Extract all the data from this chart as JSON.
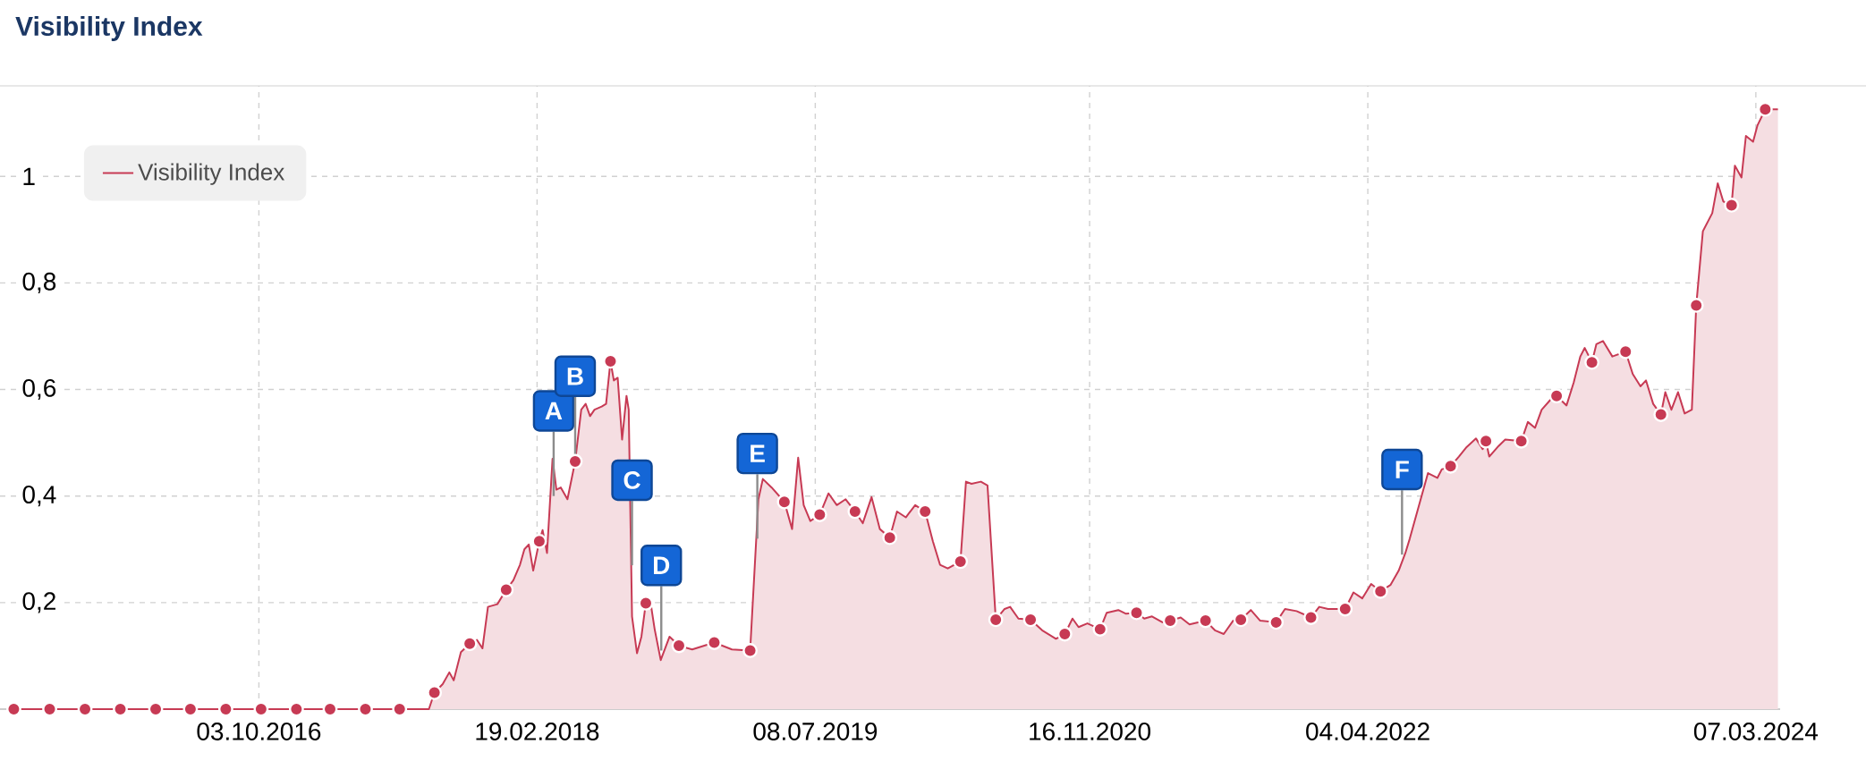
{
  "chart_data": {
    "type": "area",
    "title": "Visibility Index",
    "xlim": [
      "2015-06-22",
      "2024-04-20"
    ],
    "ylim": [
      0,
      1.17
    ],
    "xticks": [
      {
        "value": "2016-10-03",
        "label": "03.10.2016"
      },
      {
        "value": "2018-02-19",
        "label": "19.02.2018"
      },
      {
        "value": "2019-07-08",
        "label": "08.07.2019"
      },
      {
        "value": "2020-11-16",
        "label": "16.11.2020"
      },
      {
        "value": "2022-04-04",
        "label": "04.04.2022"
      },
      {
        "value": "2024-03-07",
        "label": "07.03.2024"
      }
    ],
    "yticks": [
      {
        "value": 0.2,
        "label": "0,2"
      },
      {
        "value": 0.4,
        "label": "0,4"
      },
      {
        "value": 0.6,
        "label": "0,6"
      },
      {
        "value": 0.8,
        "label": "0,8"
      },
      1
    ],
    "grid": true,
    "legend": "top left",
    "annotations": [
      {
        "text": "A",
        "x": "2018-03-21",
        "y": 0.4
      },
      {
        "text": "B",
        "x": "2018-04-29",
        "y": 0.465
      },
      {
        "text": "C",
        "x": "2018-08-10",
        "y": 0.27
      },
      {
        "text": "D",
        "x": "2018-10-02",
        "y": 0.11
      },
      {
        "text": "E",
        "x": "2019-03-25",
        "y": 0.32
      },
      {
        "text": "F",
        "x": "2022-06-05",
        "y": 0.29
      }
    ],
    "series": [
      {
        "name": "Visibility Index",
        "color": "#c73a54",
        "x": [
          "2015-07-17",
          "2017-08-07",
          "2017-08-17",
          "2017-09-01",
          "2017-09-13",
          "2017-09-21",
          "2017-10-04",
          "2017-10-20",
          "2017-11-02",
          "2017-11-12",
          "2017-11-22",
          "2017-12-09",
          "2017-12-25",
          "2018-01-07",
          "2018-01-19",
          "2018-01-27",
          "2018-02-04",
          "2018-02-12",
          "2018-02-23",
          "2018-03-01",
          "2018-03-09",
          "2018-03-19",
          "2018-03-26",
          "2018-04-03",
          "2018-04-15",
          "2018-04-29",
          "2018-05-10",
          "2018-05-18",
          "2018-05-26",
          "2018-06-03",
          "2018-06-16",
          "2018-06-24",
          "2018-07-02",
          "2018-07-08",
          "2018-07-15",
          "2018-07-23",
          "2018-07-31",
          "2018-08-04",
          "2018-08-10",
          "2018-08-19",
          "2018-08-27",
          "2018-09-04",
          "2018-09-12",
          "2018-09-20",
          "2018-10-01",
          "2018-10-17",
          "2018-11-03",
          "2018-11-27",
          "2019-01-06",
          "2019-02-07",
          "2019-03-12",
          "2019-03-27",
          "2019-04-04",
          "2019-04-20",
          "2019-05-13",
          "2019-05-27",
          "2019-06-07",
          "2019-06-17",
          "2019-06-29",
          "2019-07-16",
          "2019-08-01",
          "2019-08-16",
          "2019-09-01",
          "2019-09-18",
          "2019-10-02",
          "2019-10-18",
          "2019-11-02",
          "2019-11-20",
          "2019-12-03",
          "2019-12-19",
          "2020-01-05",
          "2020-01-23",
          "2020-02-06",
          "2020-02-19",
          "2020-03-04",
          "2020-03-27",
          "2020-04-06",
          "2020-04-16",
          "2020-05-03",
          "2020-05-15",
          "2020-05-30",
          "2020-06-15",
          "2020-06-25",
          "2020-07-10",
          "2020-08-01",
          "2020-08-22",
          "2020-09-16",
          "2020-10-02",
          "2020-10-16",
          "2020-10-27",
          "2020-11-12",
          "2020-12-05",
          "2020-12-17",
          "2021-01-07",
          "2021-01-21",
          "2021-02-09",
          "2021-02-23",
          "2021-03-09",
          "2021-03-28",
          "2021-04-11",
          "2021-04-30",
          "2021-05-16",
          "2021-06-14",
          "2021-07-01",
          "2021-07-17",
          "2021-08-03",
          "2021-08-17",
          "2021-09-04",
          "2021-09-21",
          "2021-10-20",
          "2021-11-05",
          "2021-11-26",
          "2021-12-22",
          "2022-01-06",
          "2022-01-22",
          "2022-02-22",
          "2022-03-09",
          "2022-03-25",
          "2022-04-10",
          "2022-04-27",
          "2022-05-15",
          "2022-05-30",
          "2022-06-11",
          "2022-06-19",
          "2022-07-22",
          "2022-08-08",
          "2022-08-16",
          "2022-09-01",
          "2022-09-16",
          "2022-09-30",
          "2022-10-17",
          "2022-10-29",
          "2022-11-04",
          "2022-11-10",
          "2022-11-27",
          "2022-12-09",
          "2023-01-07",
          "2023-01-19",
          "2023-02-01",
          "2023-02-13",
          "2023-03-02",
          "2023-03-12",
          "2023-03-30",
          "2023-04-12",
          "2023-04-24",
          "2023-05-02",
          "2023-05-15",
          "2023-05-23",
          "2023-06-04",
          "2023-06-21",
          "2023-07-15",
          "2023-07-28",
          "2023-08-11",
          "2023-08-21",
          "2023-09-03",
          "2023-09-17",
          "2023-09-25",
          "2023-10-06",
          "2023-10-18",
          "2023-10-30",
          "2023-11-12",
          "2023-11-20",
          "2023-12-02",
          "2023-12-19",
          "2023-12-29",
          "2024-01-08",
          "2024-01-23",
          "2024-01-29",
          "2024-02-10",
          "2024-02-18",
          "2024-03-02",
          "2024-03-10",
          "2024-03-24",
          "2024-04-16"
        ],
        "values": [
          0,
          0,
          0.031,
          0.047,
          0.069,
          0.054,
          0.107,
          0.123,
          0.13,
          0.114,
          0.192,
          0.197,
          0.224,
          0.242,
          0.271,
          0.3,
          0.309,
          0.26,
          0.315,
          0.336,
          0.293,
          0.47,
          0.412,
          0.416,
          0.394,
          0.465,
          0.562,
          0.573,
          0.55,
          0.562,
          0.568,
          0.573,
          0.653,
          0.617,
          0.622,
          0.506,
          0.588,
          0.562,
          0.174,
          0.105,
          0.136,
          0.199,
          0.204,
          0.15,
          0.092,
          0.136,
          0.119,
          0.112,
          0.125,
          0.112,
          0.11,
          0.394,
          0.432,
          0.416,
          0.389,
          0.338,
          0.472,
          0.383,
          0.353,
          0.365,
          0.405,
          0.383,
          0.394,
          0.371,
          0.349,
          0.398,
          0.338,
          0.322,
          0.371,
          0.36,
          0.383,
          0.371,
          0.315,
          0.271,
          0.264,
          0.277,
          0.427,
          0.423,
          0.427,
          0.42,
          0.168,
          0.188,
          0.192,
          0.17,
          0.168,
          0.148,
          0.132,
          0.141,
          0.17,
          0.154,
          0.161,
          0.15,
          0.181,
          0.186,
          0.179,
          0.181,
          0.17,
          0.174,
          0.163,
          0.166,
          0.172,
          0.159,
          0.166,
          0.148,
          0.141,
          0.166,
          0.168,
          0.186,
          0.166,
          0.163,
          0.188,
          0.184,
          0.172,
          0.192,
          0.188,
          0.188,
          0.219,
          0.208,
          0.235,
          0.221,
          0.233,
          0.26,
          0.293,
          0.32,
          0.443,
          0.434,
          0.45,
          0.456,
          0.474,
          0.492,
          0.508,
          0.488,
          0.503,
          0.474,
          0.494,
          0.506,
          0.503,
          0.539,
          0.528,
          0.562,
          0.582,
          0.588,
          0.57,
          0.613,
          0.662,
          0.678,
          0.651,
          0.685,
          0.691,
          0.662,
          0.671,
          0.629,
          0.606,
          0.617,
          0.573,
          0.553,
          0.595,
          0.562,
          0.595,
          0.555,
          0.562,
          0.758,
          0.897,
          0.931,
          0.987,
          0.953,
          0.946,
          1.02,
          0.998,
          1.076,
          1.065,
          1.096,
          1.126,
          1.126
        ]
      },
      {
        "type": "scatter",
        "color": "#c73a54",
        "marker": "circle",
        "x": [
          "2015-07-17",
          "2015-09-20",
          "2015-11-23",
          "2016-01-26",
          "2016-03-30",
          "2016-06-01",
          "2016-08-04",
          "2016-10-07",
          "2016-12-10",
          "2017-02-09",
          "2017-04-14",
          "2017-06-15",
          "2017-08-17",
          "2017-10-20",
          "2017-12-25",
          "2018-02-23",
          "2018-04-29",
          "2018-07-02",
          "2018-09-04",
          "2018-11-03",
          "2019-01-06",
          "2019-03-12",
          "2019-05-13",
          "2019-07-16",
          "2019-09-18",
          "2019-11-20",
          "2020-01-23",
          "2020-03-27",
          "2020-05-30",
          "2020-08-01",
          "2020-10-02",
          "2020-12-05",
          "2021-02-09",
          "2021-04-11",
          "2021-06-14",
          "2021-08-17",
          "2021-10-20",
          "2021-12-22",
          "2022-02-22",
          "2022-04-27",
          "2022-09-01",
          "2022-11-04",
          "2023-01-07",
          "2023-03-12",
          "2023-05-15",
          "2023-07-15",
          "2023-09-17",
          "2023-11-20",
          "2024-01-23",
          "2024-03-24"
        ],
        "values": [
          0,
          0,
          0,
          0,
          0,
          0,
          0,
          0,
          0,
          0,
          0,
          0,
          0.031,
          0.123,
          0.224,
          0.315,
          0.465,
          0.653,
          0.199,
          0.119,
          0.125,
          0.11,
          0.389,
          0.365,
          0.371,
          0.322,
          0.371,
          0.277,
          0.168,
          0.168,
          0.141,
          0.15,
          0.181,
          0.166,
          0.166,
          0.168,
          0.163,
          0.172,
          0.188,
          0.221,
          0.456,
          0.503,
          0.503,
          0.588,
          0.651,
          0.671,
          0.553,
          0.758,
          0.946,
          1.126
        ]
      }
    ]
  }
}
